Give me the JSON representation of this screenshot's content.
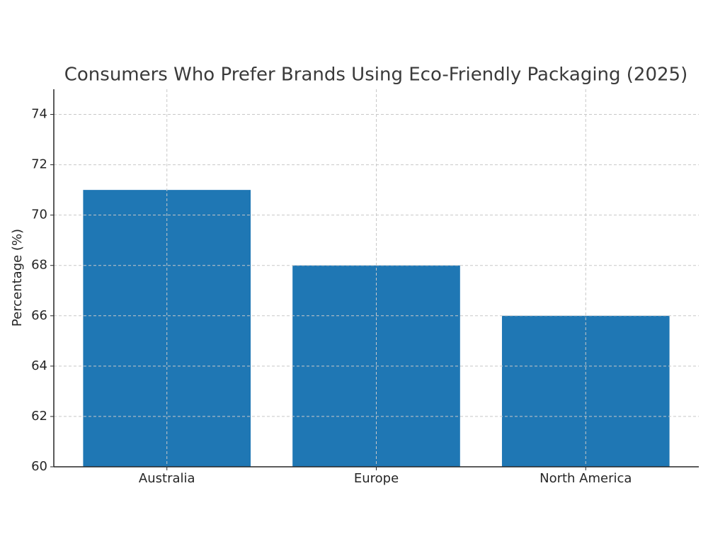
{
  "chart_data": {
    "type": "bar",
    "title": "Consumers Who Prefer Brands Using Eco-Friendly Packaging (2025)",
    "y_label": "Percentage (%)",
    "categories": [
      "Australia",
      "Europe",
      "North America"
    ],
    "values": [
      71,
      68,
      66
    ],
    "color": "#1f77b4",
    "ylim": [
      60,
      75
    ],
    "yticks": [
      60,
      62,
      64,
      66,
      68,
      70,
      72,
      74
    ],
    "grid": true
  }
}
